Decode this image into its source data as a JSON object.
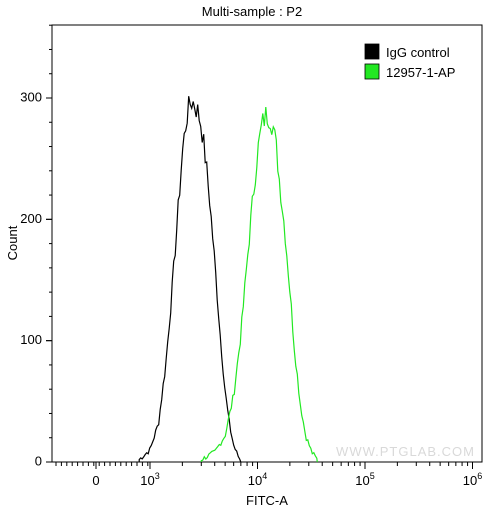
{
  "chart_data": {
    "type": "histogram",
    "title": "Multi-sample : P2",
    "xlabel": "FITC-A",
    "ylabel": "Count",
    "x_scale": "biexponential",
    "x_ticks": [
      {
        "value": 0,
        "label": "0"
      },
      {
        "value": 1000,
        "label": "10",
        "exp": "3"
      },
      {
        "value": 10000,
        "label": "10",
        "exp": "4"
      },
      {
        "value": 100000,
        "label": "10",
        "exp": "5"
      },
      {
        "value": 1000000,
        "label": "10",
        "exp": "6"
      }
    ],
    "y_ticks": [
      0,
      100,
      200,
      300
    ],
    "ylim": [
      0,
      360
    ],
    "legend_position": "top-right",
    "watermark": "WWW.PTGLAB.COM",
    "series": [
      {
        "name": "IgG control",
        "color": "#000000",
        "x": [
          800,
          1000,
          1200,
          1400,
          1600,
          1800,
          2000,
          2200,
          2400,
          2600,
          2800,
          3000,
          3300,
          3600,
          4000,
          4500,
          5000,
          5500,
          6000,
          6500,
          7000
        ],
        "y": [
          2,
          10,
          32,
          80,
          140,
          200,
          255,
          285,
          298,
          295,
          288,
          278,
          248,
          215,
          165,
          105,
          58,
          30,
          14,
          6,
          1
        ]
      },
      {
        "name": "12957-1-AP",
        "color": "#22e822",
        "x": [
          3000,
          4000,
          5000,
          6000,
          7000,
          8000,
          9000,
          10000,
          11000,
          12000,
          13000,
          14000,
          15000,
          16000,
          18000,
          20000,
          22000,
          25000,
          28000,
          32000,
          36000
        ],
        "y": [
          2,
          8,
          22,
          55,
          105,
          165,
          215,
          255,
          278,
          286,
          285,
          276,
          258,
          232,
          190,
          142,
          95,
          48,
          22,
          8,
          2
        ]
      }
    ]
  }
}
